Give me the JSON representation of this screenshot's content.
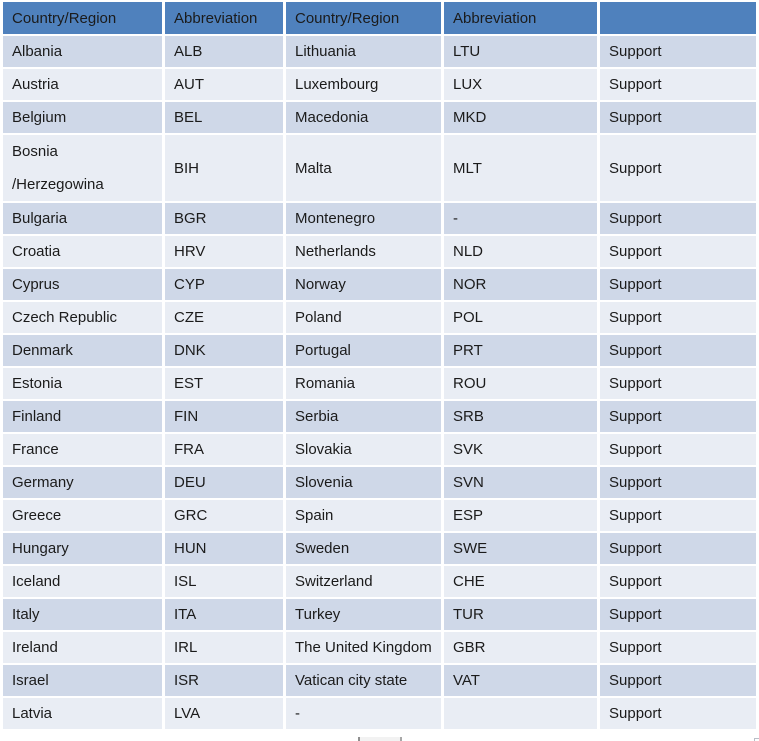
{
  "colors": {
    "header_bg": "#4f81bd",
    "row_dark": "#cfd8e8",
    "row_light": "#e9edf4",
    "gap": "#ffffff",
    "text": "#1b1b1b"
  },
  "table": {
    "headers": [
      {
        "label": "Country/Region"
      },
      {
        "label": "Abbreviation"
      },
      {
        "label": "Country/Region"
      },
      {
        "label": "Abbreviation"
      },
      {
        "label": ""
      }
    ],
    "rows": [
      {
        "country1": "Albania",
        "abbr1": "ALB",
        "country2": "Lithuania",
        "abbr2": "LTU",
        "support": "Support"
      },
      {
        "country1": "Austria",
        "abbr1": "AUT",
        "country2": "Luxembourg",
        "abbr2": "LUX",
        "support": "Support"
      },
      {
        "country1": "Belgium",
        "abbr1": "BEL",
        "country2": "Macedonia",
        "abbr2": "MKD",
        "support": "Support"
      },
      {
        "country1": "Bosnia\n/Herzegowina",
        "abbr1": "BIH",
        "country2": "Malta",
        "abbr2": "MLT",
        "support": "Support",
        "tall": true
      },
      {
        "country1": "Bulgaria",
        "abbr1": "BGR",
        "country2": "Montenegro",
        "abbr2": "-",
        "support": "Support"
      },
      {
        "country1": "Croatia",
        "abbr1": "HRV",
        "country2": "Netherlands",
        "abbr2": "NLD",
        "support": "Support"
      },
      {
        "country1": "Cyprus",
        "abbr1": "CYP",
        "country2": "Norway",
        "abbr2": "NOR",
        "support": "Support"
      },
      {
        "country1": "Czech Republic",
        "abbr1": "CZE",
        "country2": "Poland",
        "abbr2": "POL",
        "support": "Support"
      },
      {
        "country1": "Denmark",
        "abbr1": "DNK",
        "country2": "Portugal",
        "abbr2": "PRT",
        "support": "Support"
      },
      {
        "country1": "Estonia",
        "abbr1": "EST",
        "country2": "Romania",
        "abbr2": "ROU",
        "support": "Support"
      },
      {
        "country1": "Finland",
        "abbr1": "FIN",
        "country2": "Serbia",
        "abbr2": "SRB",
        "support": "Support"
      },
      {
        "country1": "France",
        "abbr1": "FRA",
        "country2": "Slovakia",
        "abbr2": "SVK",
        "support": "Support"
      },
      {
        "country1": "Germany",
        "abbr1": "DEU",
        "country2": "Slovenia",
        "abbr2": "SVN",
        "support": "Support"
      },
      {
        "country1": "Greece",
        "abbr1": "GRC",
        "country2": "Spain",
        "abbr2": "ESP",
        "support": "Support"
      },
      {
        "country1": "Hungary",
        "abbr1": "HUN",
        "country2": "Sweden",
        "abbr2": "SWE",
        "support": "Support"
      },
      {
        "country1": "Iceland",
        "abbr1": "ISL",
        "country2": "Switzerland",
        "abbr2": "CHE",
        "support": "Support"
      },
      {
        "country1": "Italy",
        "abbr1": "ITA",
        "country2": "Turkey",
        "abbr2": "TUR",
        "support": "Support"
      },
      {
        "country1": "Ireland",
        "abbr1": "IRL",
        "country2": "The United Kingdom",
        "abbr2": "GBR",
        "support": "Support"
      },
      {
        "country1": "Israel",
        "abbr1": "ISR",
        "country2": "Vatican city state",
        "abbr2": "VAT",
        "support": "Support"
      },
      {
        "country1": "Latvia",
        "abbr1": "LVA",
        "country2": "-",
        "abbr2": "",
        "support": "Support"
      }
    ]
  }
}
